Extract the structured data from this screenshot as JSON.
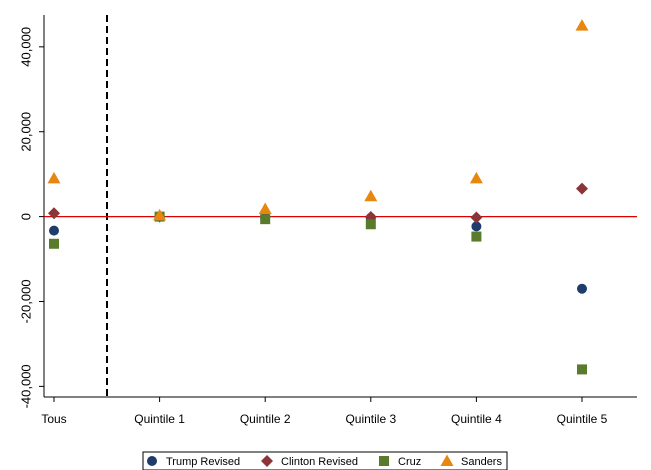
{
  "chart_data": {
    "type": "dot",
    "categories": [
      "Tous",
      "Quintile 1",
      "Quintile 2",
      "Quintile 3",
      "Quintile 4",
      "Quintile 5"
    ],
    "series": [
      {
        "name": "Trump Revised",
        "color": "#1f3c6b",
        "marker": "circle",
        "values": [
          -3300,
          0,
          -200,
          -300,
          -2300,
          -17000
        ]
      },
      {
        "name": "Clinton Revised",
        "color": "#8b3538",
        "marker": "diamond",
        "values": [
          800,
          0,
          0,
          -100,
          -200,
          6600
        ]
      },
      {
        "name": "Cruz",
        "color": "#5a7a2c",
        "marker": "square",
        "values": [
          -6400,
          0,
          -600,
          -1800,
          -4700,
          -36000
        ]
      },
      {
        "name": "Sanders",
        "color": "#e8870f",
        "marker": "triangle",
        "values": [
          9000,
          300,
          1800,
          4800,
          9000,
          45000
        ]
      }
    ],
    "ylim": [
      -42500,
      47500
    ],
    "yticks": [
      {
        "value": -40000,
        "label": "-40,000"
      },
      {
        "value": -20000,
        "label": "-20,000"
      },
      0,
      {
        "value": 20000,
        "label": "20,000"
      },
      {
        "value": 40000,
        "label": "40,000"
      }
    ],
    "hline": 0,
    "hline_color": "#e00000"
  }
}
